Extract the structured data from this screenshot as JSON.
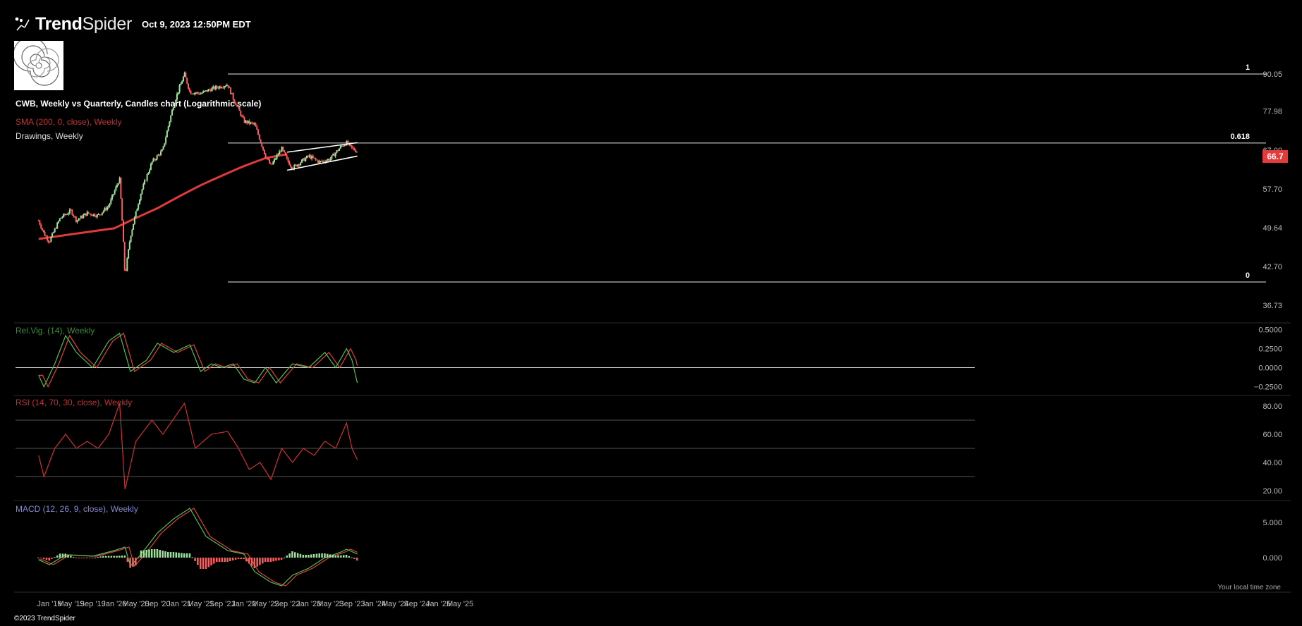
{
  "header": {
    "brand_bold": "Trend",
    "brand_light": "Spider",
    "timestamp": "Oct 9, 2023 12:50PM EDT"
  },
  "legend": {
    "main": "CWB, Weekly vs Quarterly, Candles chart (Logarithmic scale)",
    "sma": "SMA (200, 0, close), Weekly",
    "drawings": "Drawings, Weekly"
  },
  "panes": {
    "relvig": "Rel.Vig. (14), Weekly",
    "rsi": "RSI (14, 70, 30, close), Weekly",
    "macd": "MACD (12, 26, 9, close), Weekly"
  },
  "footer": {
    "copyright": "©2023 TrendSpider",
    "timezone": "Your local time zone"
  },
  "last_price": "66.7",
  "colors": {
    "background": "#000000",
    "bull": "#9be39b",
    "bear": "#ff5c5c",
    "sma": "#e03a3a",
    "relvig_label": "#3a8a3a",
    "rsi_label": "#c03030",
    "macd_label": "#8888cc"
  },
  "chart_data": [
    {
      "type": "candlestick",
      "scale": "log",
      "x_tick_labels": [
        "Jan '19",
        "May '19",
        "Sep '19",
        "Jan '20",
        "May '20",
        "Sep '20",
        "Jan '21",
        "May '21",
        "Sep '21",
        "Jan '22",
        "May '22",
        "Sep '22",
        "Jan '23",
        "May '23",
        "Sep '23",
        "Jan '24",
        "May '24",
        "Sep '24",
        "Jan '25",
        "May '25"
      ],
      "y_tick_labels": [
        "90.05",
        "77.98",
        "67.00",
        "57.70",
        "49.64",
        "42.70",
        "36.73"
      ],
      "ylim": [
        36.73,
        90.05
      ],
      "fib_levels": [
        {
          "label": "1",
          "value": 90.05
        },
        {
          "label": "0.618",
          "value": 68.9
        },
        {
          "label": "0",
          "value": 40.2
        }
      ],
      "price_path": [
        {
          "x": "Nov '18",
          "y": 51.0
        },
        {
          "x": "Dec '18",
          "y": 48.5
        },
        {
          "x": "Jan '19",
          "y": 47.0
        },
        {
          "x": "Mar '19",
          "y": 51.5
        },
        {
          "x": "May '19",
          "y": 53.0
        },
        {
          "x": "Jun '19",
          "y": 51.0
        },
        {
          "x": "Aug '19",
          "y": 52.5
        },
        {
          "x": "Oct '19",
          "y": 52.0
        },
        {
          "x": "Dec '19",
          "y": 54.0
        },
        {
          "x": "Feb '20",
          "y": 60.0
        },
        {
          "x": "Mar '20",
          "y": 41.0
        },
        {
          "x": "Apr '20",
          "y": 48.0
        },
        {
          "x": "Jun '20",
          "y": 57.0
        },
        {
          "x": "Aug '20",
          "y": 64.0
        },
        {
          "x": "Oct '20",
          "y": 67.0
        },
        {
          "x": "Dec '20",
          "y": 80.0
        },
        {
          "x": "Feb '21",
          "y": 90.0
        },
        {
          "x": "Mar '21",
          "y": 84.0
        },
        {
          "x": "May '21",
          "y": 83.5
        },
        {
          "x": "Jul '21",
          "y": 85.0
        },
        {
          "x": "Oct '21",
          "y": 86.5
        },
        {
          "x": "Nov '21",
          "y": 82.0
        },
        {
          "x": "Jan '22",
          "y": 75.0
        },
        {
          "x": "Mar '22",
          "y": 74.0
        },
        {
          "x": "May '22",
          "y": 65.5
        },
        {
          "x": "Jun '22",
          "y": 63.0
        },
        {
          "x": "Aug '22",
          "y": 67.5
        },
        {
          "x": "Sep '22",
          "y": 64.5
        },
        {
          "x": "Oct '22",
          "y": 62.5
        },
        {
          "x": "Dec '22",
          "y": 64.5
        },
        {
          "x": "Jan '23",
          "y": 65.5
        },
        {
          "x": "Mar '23",
          "y": 64.0
        },
        {
          "x": "May '23",
          "y": 64.8
        },
        {
          "x": "Jul '23",
          "y": 68.0
        },
        {
          "x": "Aug '23",
          "y": 69.0
        },
        {
          "x": "Sep '23",
          "y": 67.5
        },
        {
          "x": "Oct '23",
          "y": 66.7
        }
      ],
      "sma_path": [
        {
          "x": "Nov '18",
          "y": 47.5
        },
        {
          "x": "Jan '20",
          "y": 49.5
        },
        {
          "x": "Sep '20",
          "y": 53.5
        },
        {
          "x": "May '21",
          "y": 58.5
        },
        {
          "x": "Jan '22",
          "y": 63.0
        },
        {
          "x": "May '22",
          "y": 65.0
        },
        {
          "x": "Sep '22",
          "y": 66.0
        }
      ],
      "channel": {
        "upper": [
          {
            "x": "Sep '22",
            "y": 66.5
          },
          {
            "x": "Oct '23",
            "y": 69.0
          }
        ],
        "lower": [
          {
            "x": "Sep '22",
            "y": 62.0
          },
          {
            "x": "Oct '23",
            "y": 65.5
          }
        ]
      }
    },
    {
      "type": "line",
      "title": "Rel.Vig. (14), Weekly",
      "y_tick_labels": [
        "0.5000",
        "0.2500",
        "0.0000",
        "−0.2500"
      ],
      "ylim": [
        -0.3,
        0.55
      ],
      "series": [
        {
          "values": [
            {
              "x": "Nov '18",
              "y": -0.1
            },
            {
              "x": "Dec '18",
              "y": -0.25
            },
            {
              "x": "Feb '19",
              "y": 0.05
            },
            {
              "x": "Apr '19",
              "y": 0.42
            },
            {
              "x": "Jun '19",
              "y": 0.2
            },
            {
              "x": "Sep '19",
              "y": 0.0
            },
            {
              "x": "Dec '19",
              "y": 0.35
            },
            {
              "x": "Feb '20",
              "y": 0.45
            },
            {
              "x": "Apr '20",
              "y": -0.05
            },
            {
              "x": "Jul '20",
              "y": 0.1
            },
            {
              "x": "Sep '20",
              "y": 0.32
            },
            {
              "x": "Dec '20",
              "y": 0.2
            },
            {
              "x": "Mar '21",
              "y": 0.3
            },
            {
              "x": "May '21",
              "y": -0.05
            },
            {
              "x": "Jul '21",
              "y": 0.05
            },
            {
              "x": "Sep '21",
              "y": 0.0
            },
            {
              "x": "Nov '21",
              "y": 0.05
            },
            {
              "x": "Jan '22",
              "y": -0.15
            },
            {
              "x": "Mar '22",
              "y": -0.2
            },
            {
              "x": "May '22",
              "y": 0.0
            },
            {
              "x": "Jul '22",
              "y": -0.2
            },
            {
              "x": "Oct '22",
              "y": 0.05
            },
            {
              "x": "Jan '23",
              "y": 0.0
            },
            {
              "x": "Apr '23",
              "y": 0.2
            },
            {
              "x": "Jun '23",
              "y": 0.0
            },
            {
              "x": "Aug '23",
              "y": 0.25
            },
            {
              "x": "Sep '23",
              "y": 0.1
            },
            {
              "x": "Oct '23",
              "y": -0.2
            }
          ]
        }
      ]
    },
    {
      "type": "line",
      "title": "RSI (14, 70, 30, close), Weekly",
      "y_tick_labels": [
        "80.00",
        "60.00",
        "40.00",
        "20.00"
      ],
      "ylim": [
        15,
        85
      ],
      "levels": [
        70,
        50,
        30
      ],
      "series": [
        {
          "values": [
            {
              "x": "Nov '18",
              "y": 45
            },
            {
              "x": "Dec '18",
              "y": 30
            },
            {
              "x": "Feb '19",
              "y": 50
            },
            {
              "x": "Apr '19",
              "y": 60
            },
            {
              "x": "Jun '19",
              "y": 50
            },
            {
              "x": "Aug '19",
              "y": 55
            },
            {
              "x": "Oct '19",
              "y": 50
            },
            {
              "x": "Dec '19",
              "y": 60
            },
            {
              "x": "Feb '20",
              "y": 82
            },
            {
              "x": "Mar '20",
              "y": 21
            },
            {
              "x": "May '20",
              "y": 55
            },
            {
              "x": "Aug '20",
              "y": 70
            },
            {
              "x": "Oct '20",
              "y": 60
            },
            {
              "x": "Feb '21",
              "y": 82
            },
            {
              "x": "Apr '21",
              "y": 50
            },
            {
              "x": "Jul '21",
              "y": 60
            },
            {
              "x": "Oct '21",
              "y": 62
            },
            {
              "x": "Dec '21",
              "y": 50
            },
            {
              "x": "Feb '22",
              "y": 35
            },
            {
              "x": "Apr '22",
              "y": 40
            },
            {
              "x": "Jun '22",
              "y": 28
            },
            {
              "x": "Aug '22",
              "y": 50
            },
            {
              "x": "Oct '22",
              "y": 40
            },
            {
              "x": "Dec '22",
              "y": 50
            },
            {
              "x": "Feb '23",
              "y": 45
            },
            {
              "x": "Apr '23",
              "y": 55
            },
            {
              "x": "Jun '23",
              "y": 50
            },
            {
              "x": "Aug '23",
              "y": 68
            },
            {
              "x": "Sep '23",
              "y": 50
            },
            {
              "x": "Oct '23",
              "y": 42
            }
          ]
        }
      ]
    },
    {
      "type": "line+histogram",
      "title": "MACD (12, 26, 9, close), Weekly",
      "y_tick_labels": [
        "5.000",
        "0.000"
      ],
      "ylim": [
        -4.5,
        7.5
      ],
      "series": [
        {
          "values": [
            {
              "x": "Nov '18",
              "y": -0.3
            },
            {
              "x": "Jan '19",
              "y": -1.0
            },
            {
              "x": "Apr '19",
              "y": 0.4
            },
            {
              "x": "Sep '19",
              "y": 0.2
            },
            {
              "x": "Jan '20",
              "y": 1.0
            },
            {
              "x": "Mar '20",
              "y": 1.5
            },
            {
              "x": "Apr '20",
              "y": -1.2
            },
            {
              "x": "Jun '20",
              "y": 0.5
            },
            {
              "x": "Sep '20",
              "y": 3.5
            },
            {
              "x": "Dec '20",
              "y": 5.5
            },
            {
              "x": "Mar '21",
              "y": 7.0
            },
            {
              "x": "Jun '21",
              "y": 3.0
            },
            {
              "x": "Oct '21",
              "y": 1.0
            },
            {
              "x": "Jan '22",
              "y": 0.5
            },
            {
              "x": "Mar '22",
              "y": -2.0
            },
            {
              "x": "Jun '22",
              "y": -3.5
            },
            {
              "x": "Aug '22",
              "y": -4.0
            },
            {
              "x": "Oct '22",
              "y": -2.5
            },
            {
              "x": "Jan '23",
              "y": -1.5
            },
            {
              "x": "Apr '23",
              "y": 0.0
            },
            {
              "x": "Jul '23",
              "y": 0.8
            },
            {
              "x": "Aug '23",
              "y": 1.2
            },
            {
              "x": "Oct '23",
              "y": 0.5
            }
          ]
        }
      ]
    }
  ]
}
